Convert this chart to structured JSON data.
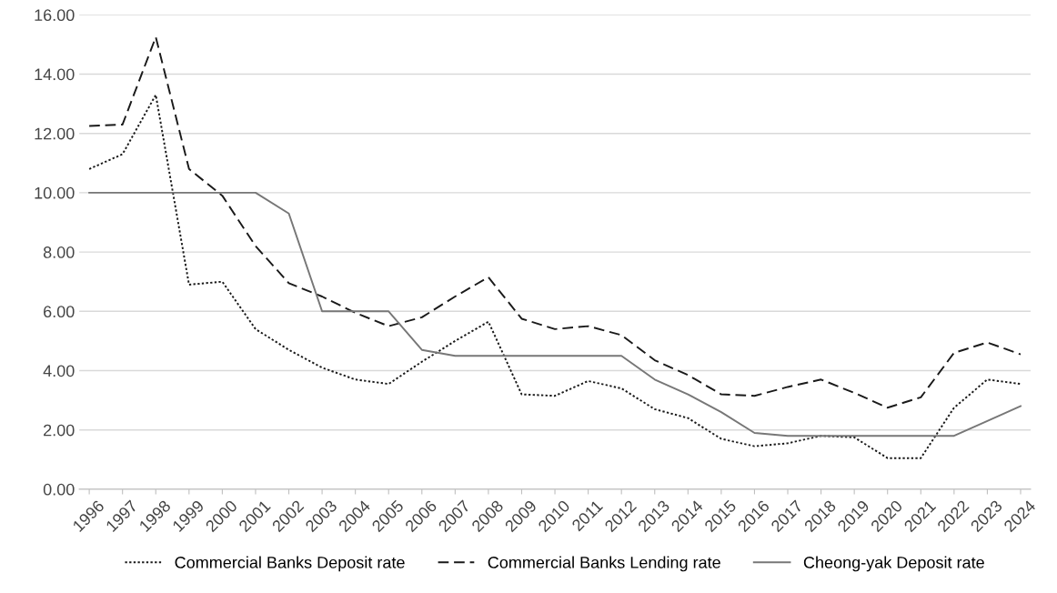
{
  "chart_data": {
    "type": "line",
    "categories": [
      "1996",
      "1997",
      "1998",
      "1999",
      "2000",
      "2001",
      "2002",
      "2003",
      "2004",
      "2005",
      "2006",
      "2007",
      "2008",
      "2009",
      "2010",
      "2011",
      "2012",
      "2013",
      "2014",
      "2015",
      "2016",
      "2017",
      "2018",
      "2019",
      "2020",
      "2021",
      "2022",
      "2023",
      "2024"
    ],
    "series": [
      {
        "name": "Commercial Banks Deposit rate",
        "color": "#1a1a1a",
        "line_style": "dotted",
        "values": [
          10.8,
          11.3,
          13.3,
          6.9,
          7.0,
          5.4,
          4.7,
          4.1,
          3.7,
          3.55,
          4.3,
          5.0,
          5.65,
          3.2,
          3.15,
          3.65,
          3.4,
          2.7,
          2.4,
          1.7,
          1.45,
          1.55,
          1.8,
          1.75,
          1.05,
          1.05,
          2.75,
          3.7,
          3.55
        ]
      },
      {
        "name": "Commercial Banks Lending rate",
        "color": "#1a1a1a",
        "line_style": "dashed",
        "values": [
          12.25,
          12.3,
          15.25,
          10.8,
          9.9,
          8.2,
          6.95,
          6.5,
          5.95,
          5.5,
          5.8,
          6.5,
          7.15,
          5.75,
          5.4,
          5.5,
          5.2,
          4.35,
          3.85,
          3.2,
          3.15,
          3.45,
          3.7,
          3.25,
          2.75,
          3.1,
          4.6,
          4.95,
          4.55
        ]
      },
      {
        "name": "Cheong-yak Deposit rate",
        "color": "#777777",
        "line_style": "solid",
        "values": [
          10,
          10,
          10,
          10,
          10,
          10,
          9.3,
          6.0,
          6.0,
          6.0,
          4.7,
          4.5,
          4.5,
          4.5,
          4.5,
          4.5,
          4.5,
          3.7,
          3.2,
          2.6,
          1.9,
          1.8,
          1.8,
          1.8,
          1.8,
          1.8,
          1.8,
          2.3,
          2.8
        ]
      }
    ],
    "ylim": [
      0,
      16
    ],
    "yticks": [
      {
        "value": 0,
        "label": "0.00"
      },
      {
        "value": 2,
        "label": "2.00"
      },
      {
        "value": 4,
        "label": "4.00"
      },
      {
        "value": 6,
        "label": "6.00"
      },
      {
        "value": 8,
        "label": "8.00"
      },
      {
        "value": 10,
        "label": "10.00"
      },
      {
        "value": 12,
        "label": "12.00"
      },
      {
        "value": 14,
        "label": "14.00"
      },
      {
        "value": 16,
        "label": "16.00"
      }
    ],
    "grid": "y",
    "legend": "bottom",
    "marker": "none"
  }
}
